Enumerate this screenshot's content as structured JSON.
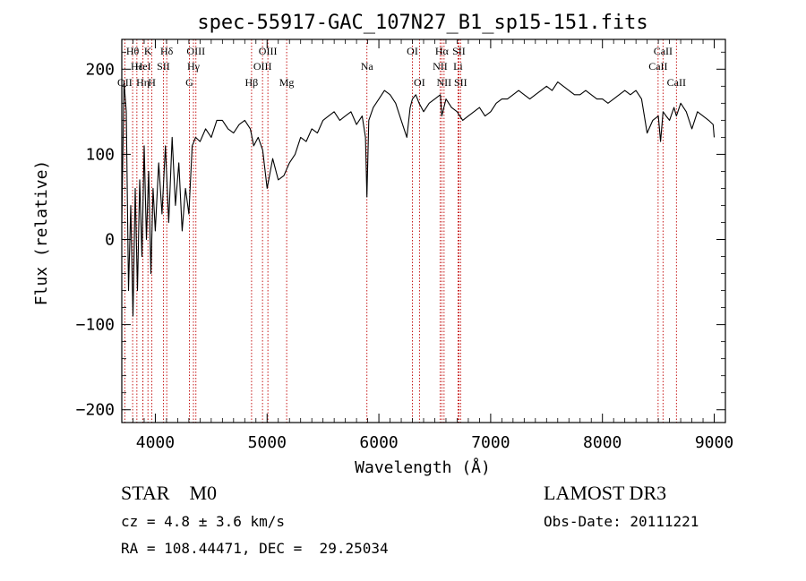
{
  "chart_data": {
    "type": "line",
    "title": "spec-55917-GAC_107N27_B1_sp15-151.fits",
    "xlabel": "Wavelength (Å)",
    "ylabel": "Flux (relative)",
    "xlim": [
      3700,
      9100
    ],
    "ylim": [
      -215,
      235
    ],
    "xticks": [
      4000,
      5000,
      6000,
      7000,
      8000,
      9000
    ],
    "yticks": [
      -200,
      -100,
      0,
      100,
      200
    ],
    "xtick_labels": [
      "4000",
      "5000",
      "6000",
      "7000",
      "8000",
      "9000"
    ],
    "ytick_labels": [
      "−200",
      "−100",
      "0",
      "100",
      "200"
    ],
    "line_color": "#000000",
    "marker_color": "#c00000",
    "series": [
      {
        "name": "flux",
        "x": [
          3700,
          3720,
          3740,
          3760,
          3780,
          3800,
          3820,
          3840,
          3860,
          3880,
          3900,
          3920,
          3940,
          3960,
          3980,
          4000,
          4030,
          4060,
          4090,
          4120,
          4150,
          4180,
          4210,
          4240,
          4270,
          4300,
          4330,
          4360,
          4400,
          4450,
          4500,
          4550,
          4600,
          4650,
          4700,
          4750,
          4800,
          4850,
          4880,
          4920,
          4960,
          5000,
          5050,
          5100,
          5150,
          5200,
          5250,
          5300,
          5350,
          5400,
          5450,
          5500,
          5550,
          5600,
          5650,
          5700,
          5750,
          5800,
          5850,
          5880,
          5893,
          5910,
          5950,
          6000,
          6050,
          6100,
          6150,
          6200,
          6250,
          6280,
          6300,
          6330,
          6360,
          6400,
          6450,
          6500,
          6550,
          6563,
          6600,
          6650,
          6700,
          6750,
          6800,
          6850,
          6900,
          6950,
          7000,
          7050,
          7100,
          7150,
          7200,
          7250,
          7300,
          7350,
          7400,
          7450,
          7500,
          7550,
          7600,
          7650,
          7700,
          7750,
          7800,
          7850,
          7900,
          7950,
          8000,
          8050,
          8100,
          8150,
          8200,
          8250,
          8300,
          8350,
          8400,
          8450,
          8500,
          8520,
          8542,
          8570,
          8600,
          8640,
          8662,
          8700,
          8750,
          8800,
          8850,
          8900,
          8950,
          8990,
          9000
        ],
        "y": [
          20,
          185,
          150,
          -60,
          40,
          -90,
          60,
          -60,
          70,
          -20,
          110,
          0,
          80,
          -40,
          60,
          10,
          90,
          30,
          110,
          20,
          120,
          40,
          90,
          10,
          60,
          30,
          110,
          120,
          115,
          130,
          120,
          140,
          140,
          130,
          125,
          135,
          140,
          130,
          110,
          120,
          105,
          60,
          95,
          70,
          75,
          90,
          100,
          120,
          115,
          130,
          125,
          140,
          145,
          150,
          140,
          145,
          150,
          135,
          145,
          120,
          50,
          140,
          155,
          165,
          175,
          170,
          160,
          140,
          120,
          155,
          165,
          170,
          160,
          150,
          160,
          165,
          170,
          145,
          165,
          155,
          150,
          140,
          145,
          150,
          155,
          145,
          150,
          160,
          165,
          165,
          170,
          175,
          170,
          165,
          170,
          175,
          180,
          175,
          185,
          180,
          175,
          170,
          170,
          175,
          170,
          165,
          165,
          160,
          165,
          170,
          175,
          170,
          175,
          165,
          125,
          140,
          145,
          115,
          150,
          145,
          140,
          155,
          145,
          160,
          150,
          130,
          150,
          145,
          140,
          135,
          120
        ]
      }
    ],
    "lines": [
      {
        "name": "Hθ",
        "x": 3797,
        "row": 1
      },
      {
        "name": "OII",
        "x": 3727,
        "row": 3
      },
      {
        "name": "Hε",
        "x": 3835,
        "row": 2
      },
      {
        "name": "Hη",
        "x": 3889,
        "row": 3
      },
      {
        "name": "K",
        "x": 3934,
        "row": 1
      },
      {
        "name": "HeI",
        "x": 3889,
        "row": 2
      },
      {
        "name": "H",
        "x": 3969,
        "row": 3
      },
      {
        "name": "SII",
        "x": 4072,
        "row": 2
      },
      {
        "name": "Hδ",
        "x": 4102,
        "row": 1
      },
      {
        "name": "OIII",
        "x": 4363,
        "row": 1
      },
      {
        "name": "Hγ",
        "x": 4341,
        "row": 2
      },
      {
        "name": "G",
        "x": 4305,
        "row": 3
      },
      {
        "name": "OIII",
        "x": 5007,
        "row": 1
      },
      {
        "name": "OIII",
        "x": 4959,
        "row": 2
      },
      {
        "name": "Hβ",
        "x": 4861,
        "row": 3
      },
      {
        "name": "Mg",
        "x": 5175,
        "row": 3
      },
      {
        "name": "Na",
        "x": 5893,
        "row": 2
      },
      {
        "name": "OI",
        "x": 6300,
        "row": 1
      },
      {
        "name": "OI",
        "x": 6363,
        "row": 3
      },
      {
        "name": "Hα",
        "x": 6563,
        "row": 1
      },
      {
        "name": "NII",
        "x": 6548,
        "row": 2
      },
      {
        "name": "NII",
        "x": 6583,
        "row": 3
      },
      {
        "name": "SII",
        "x": 6716,
        "row": 1
      },
      {
        "name": "Li",
        "x": 6708,
        "row": 2
      },
      {
        "name": "SII",
        "x": 6731,
        "row": 3
      },
      {
        "name": "CaII",
        "x": 8542,
        "row": 1
      },
      {
        "name": "CaII",
        "x": 8498,
        "row": 2
      },
      {
        "name": "CaII",
        "x": 8662,
        "row": 3
      }
    ]
  },
  "info": {
    "class_label": "STAR",
    "subclass": "M0",
    "survey": "LAMOST DR3",
    "cz": "cz = 4.8 ± 3.6 km/s",
    "obs_date": "Obs-Date: 20111221",
    "coords": "RA = 108.44471, DEC =  29.25034"
  }
}
